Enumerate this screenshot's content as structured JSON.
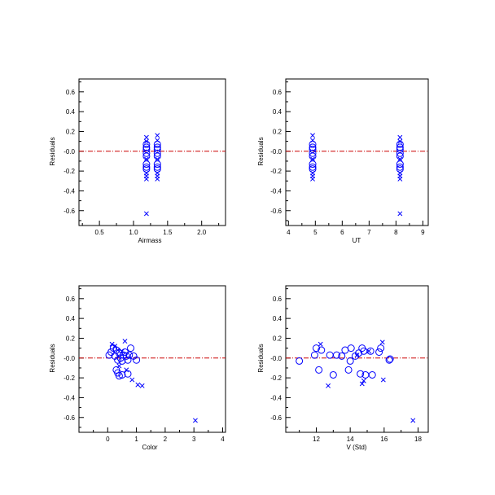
{
  "colors": {
    "marker": "#0000ff",
    "zero_line": "#cc0000",
    "axis": "#000000"
  },
  "chart_data": [
    {
      "type": "scatter",
      "title": "",
      "xlabel": "Airmass",
      "ylabel": "Residuals",
      "xlim": [
        0.2,
        2.35
      ],
      "ylim": [
        -0.75,
        0.73
      ],
      "xticks": [
        0.5,
        1.0,
        1.5,
        2.0
      ],
      "xtick_labels": [
        "0.5",
        "1.0",
        "1.5",
        "2.0"
      ],
      "yticks": [
        -0.6,
        -0.4,
        -0.2,
        0.0,
        0.2,
        0.4,
        0.6
      ],
      "ytick_labels": [
        "-0.6",
        "-0.4",
        "-0.2",
        "-0.0",
        "0.2",
        "0.4",
        "0.6"
      ],
      "reference_line_y": 0.0,
      "series": [
        {
          "marker": "circle",
          "points": [
            [
              1.19,
              0.07
            ],
            [
              1.19,
              0.04
            ],
            [
              1.19,
              0.02
            ],
            [
              1.19,
              -0.02
            ],
            [
              1.19,
              -0.05
            ],
            [
              1.19,
              -0.13
            ],
            [
              1.19,
              -0.16
            ],
            [
              1.19,
              -0.18
            ],
            [
              1.35,
              0.07
            ],
            [
              1.35,
              0.04
            ],
            [
              1.35,
              0.02
            ],
            [
              1.35,
              -0.02
            ],
            [
              1.35,
              -0.05
            ],
            [
              1.35,
              -0.13
            ],
            [
              1.35,
              -0.16
            ],
            [
              1.35,
              -0.18
            ]
          ]
        },
        {
          "marker": "cross",
          "points": [
            [
              1.19,
              0.14
            ],
            [
              1.19,
              0.1
            ],
            [
              1.19,
              -0.08
            ],
            [
              1.19,
              -0.22
            ],
            [
              1.19,
              -0.25
            ],
            [
              1.19,
              -0.28
            ],
            [
              1.19,
              -0.63
            ],
            [
              1.35,
              0.16
            ],
            [
              1.35,
              0.11
            ],
            [
              1.35,
              -0.08
            ],
            [
              1.35,
              -0.22
            ],
            [
              1.35,
              -0.25
            ],
            [
              1.35,
              -0.28
            ]
          ]
        }
      ]
    },
    {
      "type": "scatter",
      "title": "",
      "xlabel": "UT",
      "ylabel": "Residuals",
      "xlim": [
        3.9,
        9.2
      ],
      "ylim": [
        -0.75,
        0.73
      ],
      "xticks": [
        4,
        5,
        6,
        7,
        8,
        9
      ],
      "xtick_labels": [
        "4",
        "5",
        "6",
        "7",
        "8",
        "9"
      ],
      "yticks": [
        -0.6,
        -0.4,
        -0.2,
        0.0,
        0.2,
        0.4,
        0.6
      ],
      "ytick_labels": [
        "-0.6",
        "-0.4",
        "-0.2",
        "-0.0",
        "0.2",
        "0.4",
        "0.6"
      ],
      "reference_line_y": 0.0,
      "series": [
        {
          "marker": "circle",
          "points": [
            [
              4.9,
              0.07
            ],
            [
              4.9,
              0.04
            ],
            [
              4.9,
              0.02
            ],
            [
              4.9,
              -0.02
            ],
            [
              4.9,
              -0.05
            ],
            [
              4.9,
              -0.13
            ],
            [
              4.9,
              -0.16
            ],
            [
              4.9,
              -0.18
            ],
            [
              8.15,
              0.07
            ],
            [
              8.15,
              0.04
            ],
            [
              8.15,
              0.02
            ],
            [
              8.15,
              -0.02
            ],
            [
              8.15,
              -0.05
            ],
            [
              8.15,
              -0.13
            ],
            [
              8.15,
              -0.16
            ],
            [
              8.15,
              -0.18
            ]
          ]
        },
        {
          "marker": "cross",
          "points": [
            [
              4.9,
              0.16
            ],
            [
              4.9,
              0.11
            ],
            [
              4.9,
              -0.08
            ],
            [
              4.9,
              -0.22
            ],
            [
              4.9,
              -0.25
            ],
            [
              4.9,
              -0.28
            ],
            [
              8.15,
              0.14
            ],
            [
              8.15,
              0.1
            ],
            [
              8.15,
              -0.08
            ],
            [
              8.15,
              -0.22
            ],
            [
              8.15,
              -0.25
            ],
            [
              8.15,
              -0.28
            ],
            [
              8.15,
              -0.63
            ]
          ]
        }
      ]
    },
    {
      "type": "scatter",
      "title": "",
      "xlabel": "Color",
      "ylabel": "Residuals",
      "xlim": [
        -1.0,
        4.1
      ],
      "ylim": [
        -0.75,
        0.73
      ],
      "xticks": [
        0,
        1,
        2,
        3,
        4
      ],
      "xtick_labels": [
        "0",
        "1",
        "2",
        "3",
        "4"
      ],
      "yticks": [
        -0.6,
        -0.4,
        -0.2,
        0.0,
        0.2,
        0.4,
        0.6
      ],
      "ytick_labels": [
        "-0.6",
        "-0.4",
        "-0.2",
        "-0.0",
        "0.2",
        "0.4",
        "0.6"
      ],
      "reference_line_y": 0.0,
      "series": [
        {
          "marker": "circle",
          "points": [
            [
              0.05,
              0.03
            ],
            [
              0.12,
              0.06
            ],
            [
              0.2,
              0.1
            ],
            [
              0.25,
              0.02
            ],
            [
              0.3,
              0.08
            ],
            [
              0.35,
              -0.02
            ],
            [
              0.4,
              0.05
            ],
            [
              0.45,
              0.0
            ],
            [
              0.5,
              -0.03
            ],
            [
              0.55,
              0.03
            ],
            [
              0.6,
              0.06
            ],
            [
              0.65,
              0.02
            ],
            [
              0.7,
              -0.02
            ],
            [
              0.75,
              0.03
            ],
            [
              0.8,
              0.1
            ],
            [
              0.9,
              0.02
            ],
            [
              1.0,
              -0.02
            ],
            [
              0.3,
              -0.12
            ],
            [
              0.35,
              -0.15
            ],
            [
              0.4,
              -0.18
            ],
            [
              0.5,
              -0.17
            ],
            [
              0.7,
              -0.16
            ]
          ]
        },
        {
          "marker": "cross",
          "points": [
            [
              0.15,
              0.14
            ],
            [
              0.25,
              0.12
            ],
            [
              0.35,
              0.08
            ],
            [
              0.5,
              0.07
            ],
            [
              0.6,
              0.17
            ],
            [
              0.4,
              -0.08
            ],
            [
              0.65,
              -0.12
            ],
            [
              0.85,
              -0.22
            ],
            [
              1.05,
              -0.27
            ],
            [
              1.2,
              -0.28
            ],
            [
              3.05,
              -0.63
            ]
          ]
        }
      ]
    },
    {
      "type": "scatter",
      "title": "",
      "xlabel": "V (Std)",
      "ylabel": "Residuals",
      "xlim": [
        10.2,
        18.6
      ],
      "ylim": [
        -0.75,
        0.73
      ],
      "xticks": [
        12,
        14,
        16,
        18
      ],
      "xtick_labels": [
        "12",
        "14",
        "16",
        "18"
      ],
      "yticks": [
        -0.6,
        -0.4,
        -0.2,
        0.0,
        0.2,
        0.4,
        0.6
      ],
      "ytick_labels": [
        "-0.6",
        "-0.4",
        "-0.2",
        "-0.0",
        "0.2",
        "0.4",
        "0.6"
      ],
      "reference_line_y": 0.0,
      "series": [
        {
          "marker": "circle",
          "points": [
            [
              11.0,
              -0.03
            ],
            [
              11.9,
              0.03
            ],
            [
              12.0,
              0.1
            ],
            [
              12.15,
              -0.12
            ],
            [
              12.3,
              0.08
            ],
            [
              12.8,
              0.03
            ],
            [
              13.0,
              -0.17
            ],
            [
              13.2,
              0.03
            ],
            [
              13.5,
              0.02
            ],
            [
              13.7,
              0.08
            ],
            [
              13.9,
              -0.12
            ],
            [
              14.0,
              -0.03
            ],
            [
              14.05,
              0.1
            ],
            [
              14.3,
              0.02
            ],
            [
              14.5,
              0.05
            ],
            [
              14.6,
              -0.16
            ],
            [
              14.7,
              0.1
            ],
            [
              14.8,
              0.07
            ],
            [
              14.9,
              -0.17
            ],
            [
              15.2,
              0.07
            ],
            [
              15.3,
              -0.17
            ],
            [
              15.7,
              0.06
            ],
            [
              15.8,
              0.1
            ],
            [
              16.3,
              -0.02
            ],
            [
              16.35,
              -0.01
            ]
          ]
        },
        {
          "marker": "cross",
          "points": [
            [
              12.25,
              0.14
            ],
            [
              12.7,
              -0.28
            ],
            [
              14.4,
              0.03
            ],
            [
              14.7,
              -0.26
            ],
            [
              14.8,
              -0.23
            ],
            [
              15.1,
              0.07
            ],
            [
              15.9,
              0.16
            ],
            [
              15.95,
              -0.22
            ],
            [
              17.7,
              -0.63
            ]
          ]
        }
      ]
    }
  ]
}
